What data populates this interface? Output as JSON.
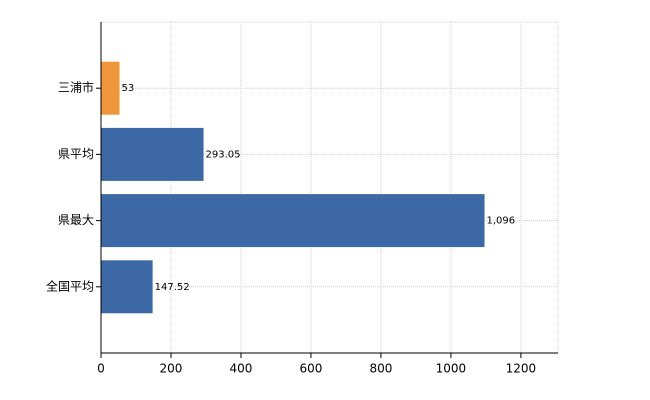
{
  "chart_data": {
    "type": "bar",
    "orientation": "horizontal",
    "categories": [
      "三浦市",
      "県平均",
      "県最大",
      "全国平均"
    ],
    "values": [
      53,
      293.05,
      1096,
      147.52
    ],
    "value_labels": [
      "53",
      "293.05",
      "1,096",
      "147.52"
    ],
    "colors": [
      "#f0963a",
      "#3c69a5",
      "#3c69a5",
      "#3c69a5"
    ],
    "xlim": [
      0,
      1306
    ],
    "xticks": [
      0,
      200,
      400,
      600,
      800,
      1000,
      1200
    ],
    "grid": true
  }
}
